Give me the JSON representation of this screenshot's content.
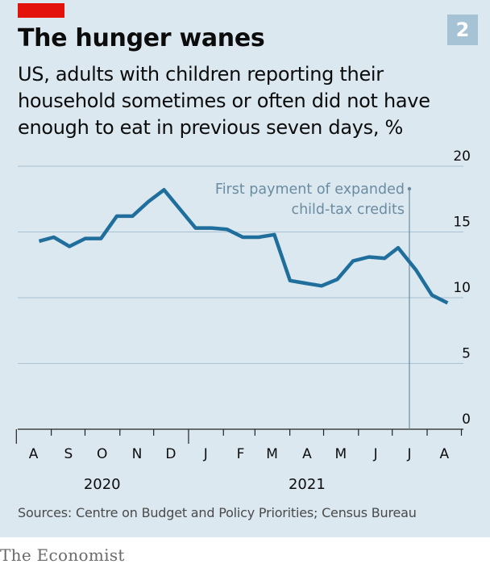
{
  "header": {
    "badge": "2",
    "title": "The hunger wanes",
    "subtitle": "US, adults with children reporting their household sometimes or often did not have enough to eat in previous seven days, %"
  },
  "footer": {
    "source": "Sources: Centre on Budget and Policy Priorities; Census Bureau",
    "brand": "The Economist"
  },
  "colors": {
    "line": "#1f6e9c",
    "grid": "#a9c1d1",
    "annotation": "#6a8ca1",
    "background": "#dbe8f0",
    "accent": "#e3120b"
  },
  "chart_data": {
    "type": "line",
    "title": "The hunger wanes",
    "xlabel": "",
    "ylabel": "",
    "ylim": [
      0,
      20
    ],
    "yticks": [
      0,
      5,
      10,
      15,
      20
    ],
    "y_axis_side": "right",
    "grid": true,
    "x_domain": [
      "2020-08-01",
      "2021-09-01"
    ],
    "x_ticks": [
      {
        "label": "A",
        "date": "2020-08-15"
      },
      {
        "label": "S",
        "date": "2020-09-15"
      },
      {
        "label": "O",
        "date": "2020-10-15"
      },
      {
        "label": "N",
        "date": "2020-11-15"
      },
      {
        "label": "D",
        "date": "2020-12-15"
      },
      {
        "label": "J",
        "date": "2021-01-15"
      },
      {
        "label": "F",
        "date": "2021-02-15"
      },
      {
        "label": "M",
        "date": "2021-03-15"
      },
      {
        "label": "A",
        "date": "2021-04-15"
      },
      {
        "label": "M",
        "date": "2021-05-15"
      },
      {
        "label": "J",
        "date": "2021-06-15"
      },
      {
        "label": "J",
        "date": "2021-07-15"
      },
      {
        "label": "A",
        "date": "2021-08-15"
      }
    ],
    "year_labels": [
      {
        "label": "2020",
        "date": "2020-10-15"
      },
      {
        "label": "2021",
        "date": "2021-04-15"
      }
    ],
    "series": [
      {
        "points": [
          {
            "x": "2020-08-20",
            "y": 14.3
          },
          {
            "x": "2020-09-02",
            "y": 14.6
          },
          {
            "x": "2020-09-16",
            "y": 13.9
          },
          {
            "x": "2020-09-30",
            "y": 14.5
          },
          {
            "x": "2020-10-14",
            "y": 14.5
          },
          {
            "x": "2020-10-28",
            "y": 16.2
          },
          {
            "x": "2020-11-11",
            "y": 16.2
          },
          {
            "x": "2020-11-25",
            "y": 17.3
          },
          {
            "x": "2020-12-09",
            "y": 18.2
          },
          {
            "x": "2021-01-06",
            "y": 15.3
          },
          {
            "x": "2021-01-20",
            "y": 15.3
          },
          {
            "x": "2021-02-03",
            "y": 15.2
          },
          {
            "x": "2021-02-17",
            "y": 14.6
          },
          {
            "x": "2021-03-03",
            "y": 14.6
          },
          {
            "x": "2021-03-17",
            "y": 14.8
          },
          {
            "x": "2021-03-31",
            "y": 11.3
          },
          {
            "x": "2021-04-14",
            "y": 11.1
          },
          {
            "x": "2021-04-28",
            "y": 10.9
          },
          {
            "x": "2021-05-12",
            "y": 11.4
          },
          {
            "x": "2021-05-26",
            "y": 12.8
          },
          {
            "x": "2021-06-09",
            "y": 13.1
          },
          {
            "x": "2021-06-23",
            "y": 13.0
          },
          {
            "x": "2021-07-05",
            "y": 13.8
          },
          {
            "x": "2021-07-21",
            "y": 12.1
          },
          {
            "x": "2021-08-04",
            "y": 10.2
          },
          {
            "x": "2021-08-18",
            "y": 9.6
          }
        ]
      }
    ],
    "annotations": [
      {
        "date": "2021-07-15",
        "lines": [
          "First payment of expanded",
          "child-tax credits"
        ]
      }
    ]
  }
}
